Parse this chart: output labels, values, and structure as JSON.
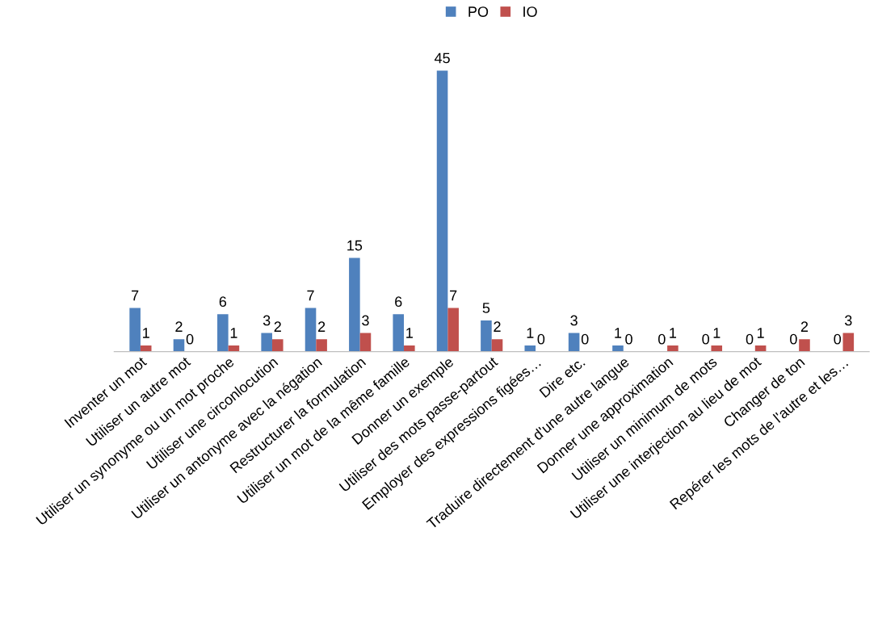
{
  "chart_data": {
    "type": "bar",
    "data_labels": true,
    "legend": "top",
    "grid": false,
    "categories": [
      "Inventer un mot",
      "Utiliser un autre mot",
      "Utiliser un synonyme ou un mot proche",
      "Utiliser une circonlocution",
      "Utiliser un antonyme avec la négation",
      "Restructurer la formulation",
      "Utiliser un mot de la même famille",
      "Donner un exemple",
      "Utiliser des mots passe-partout",
      "Employer des expressions figées…",
      "Dire etc.",
      "Traduire directement d'une autre langue",
      "Donner une approximation",
      "Utiliser un minimum de mots",
      "Utiliser une interjection au lieu de mot",
      "Changer de ton",
      "Repérer les mots de l'autre et les…"
    ],
    "series": [
      {
        "name": "PO",
        "color": "#4f81bd",
        "values": [
          7,
          2,
          6,
          3,
          7,
          15,
          6,
          45,
          5,
          1,
          3,
          1,
          0,
          0,
          0,
          0,
          0
        ]
      },
      {
        "name": "IO",
        "color": "#c0504d",
        "values": [
          1,
          0,
          1,
          2,
          2,
          3,
          1,
          7,
          2,
          0,
          0,
          0,
          1,
          1,
          1,
          2,
          3
        ]
      }
    ]
  }
}
